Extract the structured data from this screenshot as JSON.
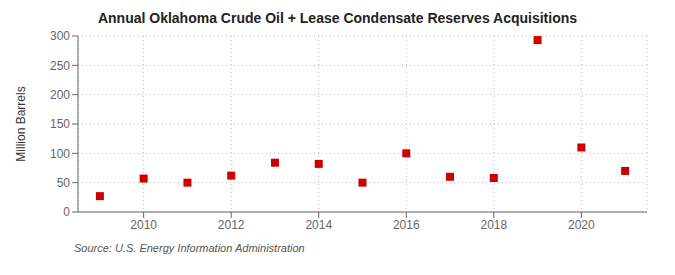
{
  "chart_data": {
    "type": "scatter",
    "title": "Annual Oklahoma Crude Oil + Lease Condensate Reserves Acquisitions",
    "ylabel": "Million Barrels",
    "annotation": "Source: U.S. Energy Information Administration",
    "x": [
      2009,
      2010,
      2011,
      2012,
      2013,
      2014,
      2015,
      2016,
      2017,
      2018,
      2019,
      2020,
      2021
    ],
    "values": [
      27,
      57,
      50,
      62,
      84,
      82,
      50,
      100,
      60,
      58,
      293,
      110,
      70
    ],
    "color": "#cc0000",
    "marker": "square",
    "xlim": [
      2008.5,
      2021.5
    ],
    "xticks": [
      2010,
      2012,
      2014,
      2016,
      2018,
      2020
    ],
    "ylim": [
      0,
      300
    ],
    "yticks": [
      0,
      50,
      100,
      150,
      200,
      250,
      300
    ],
    "grid": true
  }
}
